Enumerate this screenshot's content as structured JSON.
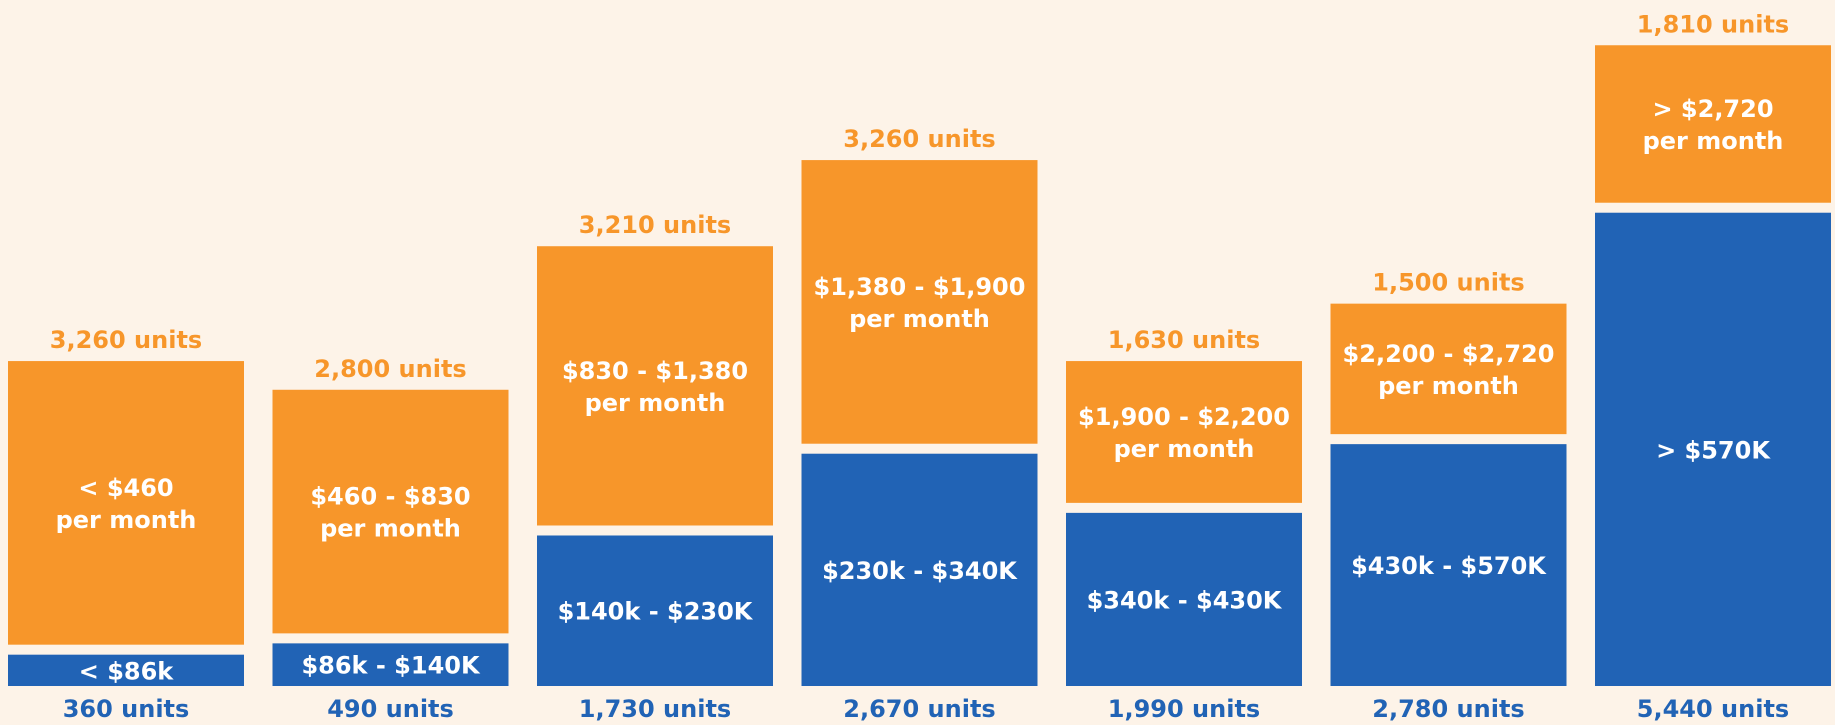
{
  "chart_data": {
    "type": "bar",
    "stacked": true,
    "series": [
      {
        "color": "#2163b5",
        "label_color": "#2163b5",
        "values": [
          360,
          490,
          1730,
          2670,
          1990,
          2780,
          5440
        ],
        "value_labels": [
          "360 units",
          "490 units",
          "1,730 units",
          "2,670 units",
          "1,990 units",
          "2,780 units",
          "5,440 units"
        ],
        "labels": [
          [
            "< $86k"
          ],
          [
            "$86k - $140K"
          ],
          [
            "$140k - $230K"
          ],
          [
            "$230k - $340K"
          ],
          [
            "$340k - $430K"
          ],
          [
            "$430k - $570K"
          ],
          [
            "> $570K"
          ]
        ]
      },
      {
        "color": "#f7962a",
        "label_color": "#f7962a",
        "values": [
          3260,
          2800,
          3210,
          3260,
          1630,
          1500,
          1810
        ],
        "value_labels": [
          "3,260 units",
          "2,800 units",
          "3,210 units",
          "3,260 units",
          "1,630 units",
          "1,500 units",
          "1,810 units"
        ],
        "labels": [
          [
            "< $460",
            "per month"
          ],
          [
            "$460 - $830",
            "per month"
          ],
          [
            "$830 - $1,380",
            "per month"
          ],
          [
            "$1,380 - $1,900",
            "per month"
          ],
          [
            "$1,900 - $2,200",
            "per month"
          ],
          [
            "$2,200 - $2,720",
            "per month"
          ],
          [
            "> $2,720",
            "per month"
          ]
        ]
      }
    ]
  }
}
